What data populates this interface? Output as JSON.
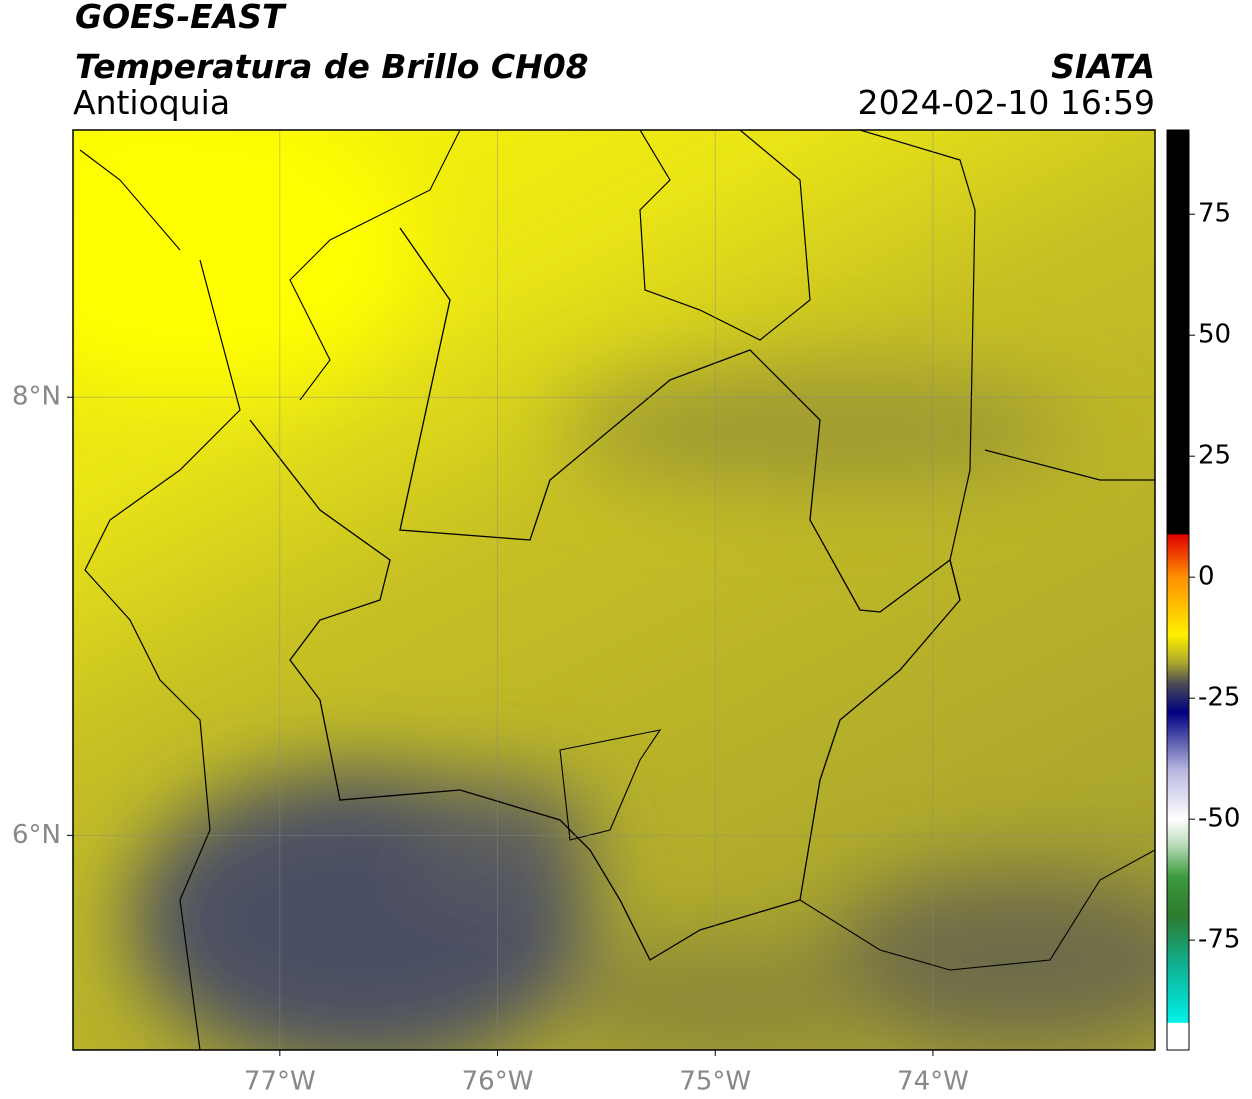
{
  "header": {
    "title": "GOES-EAST",
    "subtitle": "Temperatura de Brillo CH08",
    "region": "Antioquia",
    "source": "SIATA",
    "datetime": "2024-02-10 16:59"
  },
  "map": {
    "xlim": [
      -77.95,
      -72.98
    ],
    "ylim": [
      5.02,
      9.22
    ],
    "xticks": [
      {
        "value": -77,
        "label": "77°W"
      },
      {
        "value": -76,
        "label": "76°W"
      },
      {
        "value": -75,
        "label": "75°W"
      },
      {
        "value": -74,
        "label": "74°W"
      }
    ],
    "yticks": [
      {
        "value": 8,
        "label": "8°N"
      },
      {
        "value": 6,
        "label": "6°N"
      }
    ],
    "grid": true
  },
  "colorbar": {
    "lim": [
      -97.7,
      92.4
    ],
    "ticks": [
      75,
      50,
      25,
      0,
      -25,
      -50,
      -75
    ]
  }
}
